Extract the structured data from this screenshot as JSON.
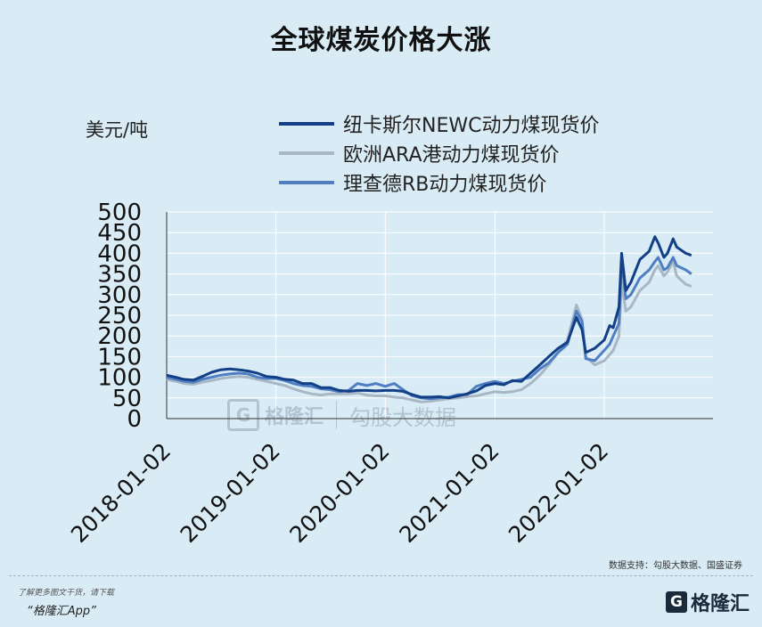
{
  "page": {
    "source_note": "数据支持：勾股大数据、国盛证券",
    "footer_line1": "了解更多图文干货，请下载",
    "footer_line2": "“格隆汇App”",
    "footer_logo_mark": "G",
    "footer_logo_text": "格隆汇",
    "watermark_mark": "G",
    "watermark_brand": "格隆汇",
    "watermark_text": "勾股大数据"
  },
  "chart_data": {
    "type": "line",
    "title": "全球煤炭价格大涨",
    "unit_label": "美元/吨",
    "ylim": [
      0,
      500
    ],
    "yticks": [
      0,
      50,
      100,
      150,
      200,
      250,
      300,
      350,
      400,
      450,
      500
    ],
    "xlim": [
      "2018-01-02",
      "2022-12-31"
    ],
    "xticks": [
      "2018-01-02",
      "2019-01-02",
      "2020-01-02",
      "2021-01-02",
      "2022-01-02"
    ],
    "grid": true,
    "legend_position": "top",
    "series": [
      {
        "name": "纽卡斯尔NEWC动力煤现货价",
        "color": "#123f86",
        "points": [
          [
            "2018-01-02",
            105
          ],
          [
            "2018-02-01",
            100
          ],
          [
            "2018-03-01",
            95
          ],
          [
            "2018-04-01",
            93
          ],
          [
            "2018-05-01",
            102
          ],
          [
            "2018-06-01",
            112
          ],
          [
            "2018-07-01",
            118
          ],
          [
            "2018-08-01",
            120
          ],
          [
            "2018-09-01",
            118
          ],
          [
            "2018-10-01",
            115
          ],
          [
            "2018-11-01",
            110
          ],
          [
            "2018-12-01",
            102
          ],
          [
            "2019-01-02",
            100
          ],
          [
            "2019-02-01",
            95
          ],
          [
            "2019-03-01",
            93
          ],
          [
            "2019-04-01",
            85
          ],
          [
            "2019-05-01",
            85
          ],
          [
            "2019-06-01",
            75
          ],
          [
            "2019-07-01",
            75
          ],
          [
            "2019-08-01",
            68
          ],
          [
            "2019-09-01",
            66
          ],
          [
            "2019-10-01",
            68
          ],
          [
            "2019-11-01",
            68
          ],
          [
            "2019-12-01",
            67
          ],
          [
            "2020-01-02",
            68
          ],
          [
            "2020-02-01",
            68
          ],
          [
            "2020-03-01",
            66
          ],
          [
            "2020-04-01",
            58
          ],
          [
            "2020-05-01",
            52
          ],
          [
            "2020-06-01",
            52
          ],
          [
            "2020-07-01",
            53
          ],
          [
            "2020-08-01",
            50
          ],
          [
            "2020-09-01",
            55
          ],
          [
            "2020-10-01",
            60
          ],
          [
            "2020-11-01",
            67
          ],
          [
            "2020-12-01",
            80
          ],
          [
            "2021-01-02",
            85
          ],
          [
            "2021-02-01",
            82
          ],
          [
            "2021-03-01",
            92
          ],
          [
            "2021-04-01",
            90
          ],
          [
            "2021-05-01",
            110
          ],
          [
            "2021-06-01",
            130
          ],
          [
            "2021-07-01",
            150
          ],
          [
            "2021-08-01",
            170
          ],
          [
            "2021-09-01",
            185
          ],
          [
            "2021-10-01",
            245
          ],
          [
            "2021-10-20",
            215
          ],
          [
            "2021-11-01",
            160
          ],
          [
            "2021-12-01",
            170
          ],
          [
            "2022-01-02",
            190
          ],
          [
            "2022-01-20",
            225
          ],
          [
            "2022-02-01",
            220
          ],
          [
            "2022-02-20",
            270
          ],
          [
            "2022-03-01",
            400
          ],
          [
            "2022-03-15",
            310
          ],
          [
            "2022-04-01",
            330
          ],
          [
            "2022-05-01",
            385
          ],
          [
            "2022-06-01",
            405
          ],
          [
            "2022-06-20",
            440
          ],
          [
            "2022-07-01",
            425
          ],
          [
            "2022-07-20",
            390
          ],
          [
            "2022-08-01",
            400
          ],
          [
            "2022-08-20",
            435
          ],
          [
            "2022-09-01",
            415
          ],
          [
            "2022-10-01",
            400
          ],
          [
            "2022-10-20",
            395
          ]
        ]
      },
      {
        "name": "欧洲ARA港动力煤现货价",
        "color": "#a9b7c4",
        "points": [
          [
            "2018-01-02",
            95
          ],
          [
            "2018-02-01",
            90
          ],
          [
            "2018-03-01",
            85
          ],
          [
            "2018-04-01",
            83
          ],
          [
            "2018-05-01",
            88
          ],
          [
            "2018-06-01",
            92
          ],
          [
            "2018-07-01",
            97
          ],
          [
            "2018-08-01",
            100
          ],
          [
            "2018-09-01",
            102
          ],
          [
            "2018-10-01",
            100
          ],
          [
            "2018-11-01",
            95
          ],
          [
            "2018-12-01",
            90
          ],
          [
            "2019-01-02",
            85
          ],
          [
            "2019-02-01",
            80
          ],
          [
            "2019-03-01",
            72
          ],
          [
            "2019-04-01",
            65
          ],
          [
            "2019-05-01",
            60
          ],
          [
            "2019-06-01",
            57
          ],
          [
            "2019-07-01",
            60
          ],
          [
            "2019-08-01",
            60
          ],
          [
            "2019-09-01",
            60
          ],
          [
            "2019-10-01",
            62
          ],
          [
            "2019-11-01",
            57
          ],
          [
            "2019-12-01",
            55
          ],
          [
            "2020-01-02",
            55
          ],
          [
            "2020-02-01",
            52
          ],
          [
            "2020-03-01",
            50
          ],
          [
            "2020-04-01",
            45
          ],
          [
            "2020-05-01",
            40
          ],
          [
            "2020-06-01",
            42
          ],
          [
            "2020-07-01",
            45
          ],
          [
            "2020-08-01",
            48
          ],
          [
            "2020-09-01",
            50
          ],
          [
            "2020-10-01",
            53
          ],
          [
            "2020-11-01",
            55
          ],
          [
            "2020-12-01",
            60
          ],
          [
            "2021-01-02",
            65
          ],
          [
            "2021-02-01",
            63
          ],
          [
            "2021-03-01",
            65
          ],
          [
            "2021-04-01",
            70
          ],
          [
            "2021-05-01",
            85
          ],
          [
            "2021-06-01",
            105
          ],
          [
            "2021-07-01",
            130
          ],
          [
            "2021-08-01",
            160
          ],
          [
            "2021-09-01",
            190
          ],
          [
            "2021-10-01",
            275
          ],
          [
            "2021-10-20",
            240
          ],
          [
            "2021-11-01",
            150
          ],
          [
            "2021-12-01",
            130
          ],
          [
            "2022-01-02",
            140
          ],
          [
            "2022-01-20",
            155
          ],
          [
            "2022-02-01",
            165
          ],
          [
            "2022-02-20",
            200
          ],
          [
            "2022-03-01",
            330
          ],
          [
            "2022-03-15",
            260
          ],
          [
            "2022-04-01",
            270
          ],
          [
            "2022-05-01",
            310
          ],
          [
            "2022-06-01",
            330
          ],
          [
            "2022-06-20",
            360
          ],
          [
            "2022-07-01",
            370
          ],
          [
            "2022-07-20",
            345
          ],
          [
            "2022-08-01",
            355
          ],
          [
            "2022-08-20",
            380
          ],
          [
            "2022-09-01",
            345
          ],
          [
            "2022-10-01",
            325
          ],
          [
            "2022-10-20",
            320
          ]
        ]
      },
      {
        "name": "理查德RB动力煤现货价",
        "color": "#4f7fc2",
        "points": [
          [
            "2018-01-02",
            100
          ],
          [
            "2018-02-01",
            95
          ],
          [
            "2018-03-01",
            90
          ],
          [
            "2018-04-01",
            88
          ],
          [
            "2018-05-01",
            95
          ],
          [
            "2018-06-01",
            100
          ],
          [
            "2018-07-01",
            105
          ],
          [
            "2018-08-01",
            108
          ],
          [
            "2018-09-01",
            110
          ],
          [
            "2018-10-01",
            108
          ],
          [
            "2018-11-01",
            100
          ],
          [
            "2018-12-01",
            97
          ],
          [
            "2019-01-02",
            97
          ],
          [
            "2019-02-01",
            92
          ],
          [
            "2019-03-01",
            85
          ],
          [
            "2019-04-01",
            80
          ],
          [
            "2019-05-01",
            78
          ],
          [
            "2019-06-01",
            72
          ],
          [
            "2019-07-01",
            70
          ],
          [
            "2019-08-01",
            65
          ],
          [
            "2019-09-01",
            68
          ],
          [
            "2019-10-01",
            85
          ],
          [
            "2019-11-01",
            80
          ],
          [
            "2019-12-01",
            85
          ],
          [
            "2020-01-02",
            78
          ],
          [
            "2020-02-01",
            85
          ],
          [
            "2020-03-01",
            70
          ],
          [
            "2020-04-01",
            55
          ],
          [
            "2020-05-01",
            50
          ],
          [
            "2020-06-01",
            48
          ],
          [
            "2020-07-01",
            50
          ],
          [
            "2020-08-01",
            52
          ],
          [
            "2020-09-01",
            58
          ],
          [
            "2020-10-01",
            58
          ],
          [
            "2020-11-01",
            78
          ],
          [
            "2020-12-01",
            85
          ],
          [
            "2021-01-02",
            90
          ],
          [
            "2021-02-01",
            85
          ],
          [
            "2021-03-01",
            90
          ],
          [
            "2021-04-01",
            95
          ],
          [
            "2021-05-01",
            100
          ],
          [
            "2021-06-01",
            120
          ],
          [
            "2021-07-01",
            135
          ],
          [
            "2021-08-01",
            160
          ],
          [
            "2021-09-01",
            180
          ],
          [
            "2021-10-01",
            260
          ],
          [
            "2021-10-20",
            235
          ],
          [
            "2021-11-01",
            145
          ],
          [
            "2021-12-01",
            140
          ],
          [
            "2022-01-02",
            165
          ],
          [
            "2022-01-20",
            180
          ],
          [
            "2022-02-01",
            200
          ],
          [
            "2022-02-20",
            230
          ],
          [
            "2022-03-01",
            385
          ],
          [
            "2022-03-15",
            290
          ],
          [
            "2022-04-01",
            300
          ],
          [
            "2022-05-01",
            340
          ],
          [
            "2022-06-01",
            360
          ],
          [
            "2022-06-20",
            380
          ],
          [
            "2022-07-01",
            390
          ],
          [
            "2022-07-20",
            360
          ],
          [
            "2022-08-01",
            365
          ],
          [
            "2022-08-20",
            390
          ],
          [
            "2022-09-01",
            370
          ],
          [
            "2022-10-01",
            360
          ],
          [
            "2022-10-20",
            350
          ]
        ]
      }
    ]
  }
}
